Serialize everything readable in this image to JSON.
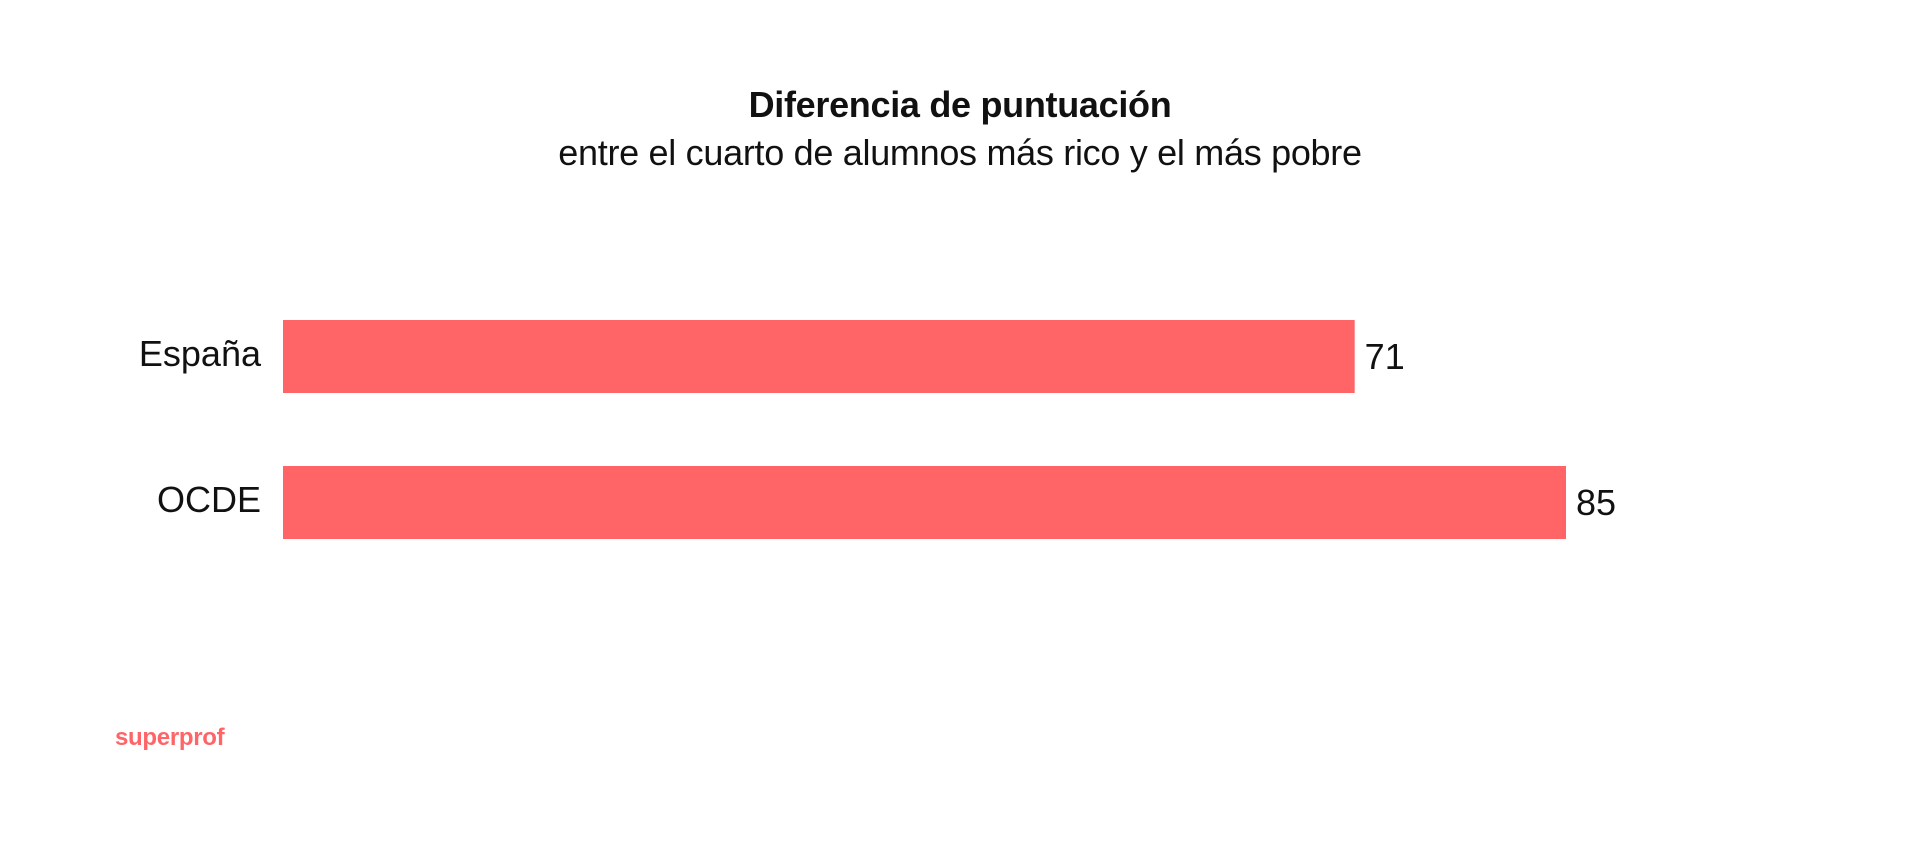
{
  "brand": {
    "name": "superprof",
    "color": "#ff6467"
  },
  "chart_data": {
    "type": "bar",
    "orientation": "horizontal",
    "title": "Diferencia de puntuación",
    "subtitle": "entre el cuarto de alumnos más rico y el más pobre",
    "categories": [
      "España",
      "OCDE"
    ],
    "values": [
      71,
      85
    ],
    "xlim": [
      0,
      85
    ],
    "grid": false,
    "legend": "none",
    "bar_color": "#ff6467"
  }
}
